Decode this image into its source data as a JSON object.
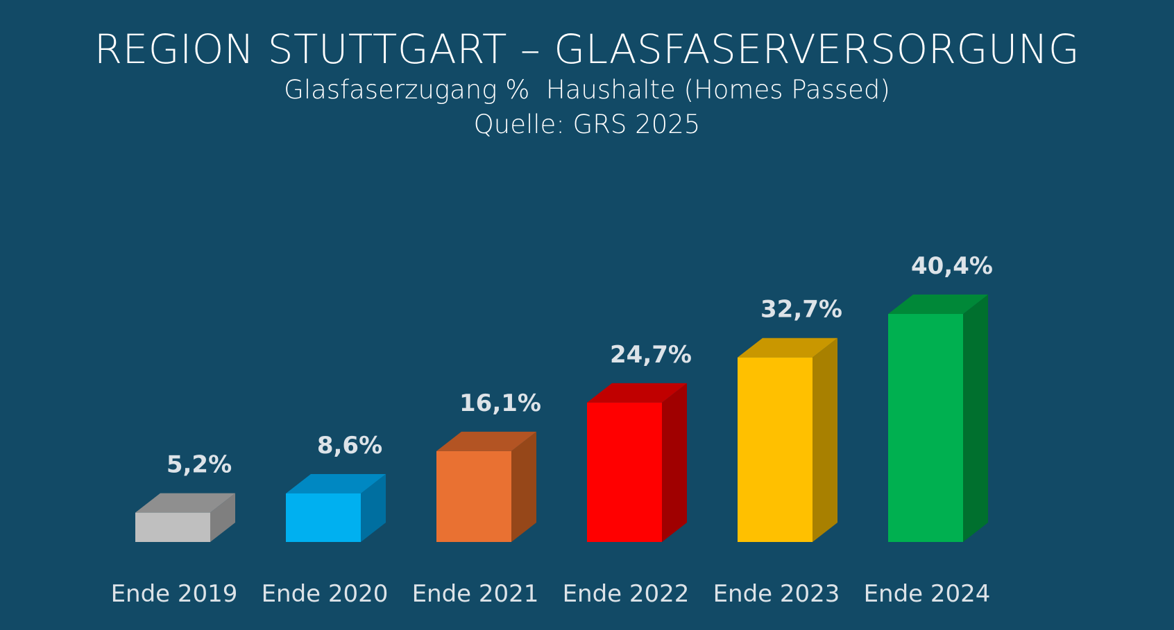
{
  "chart_data": {
    "type": "bar",
    "title": "REGION STUTTGART – GLASFASERVERSORGUNG",
    "subtitle": "Glasfaserzugang %  Haushalte (Homes Passed)",
    "source": "Quelle: GRS 2025",
    "categories": [
      "Ende 2019",
      "Ende 2020",
      "Ende 2021",
      "Ende 2022",
      "Ende 2023",
      "Ende 2024"
    ],
    "values": [
      5.2,
      8.6,
      16.1,
      24.7,
      32.7,
      40.4
    ],
    "value_labels": [
      "5,2%",
      "8,6%",
      "16,1%",
      "24,7%",
      "32,7%",
      "40,4%"
    ],
    "bar_colors": [
      {
        "front": "#bfbfbf",
        "top": "#8f8f8f",
        "side": "#7f7f7f"
      },
      {
        "front": "#00b0f0",
        "top": "#0088c2",
        "side": "#006fa0"
      },
      {
        "front": "#e97132",
        "top": "#b35423",
        "side": "#964719"
      },
      {
        "front": "#ff0000",
        "top": "#c00000",
        "side": "#a00000"
      },
      {
        "front": "#ffc000",
        "top": "#c99700",
        "side": "#a88000"
      },
      {
        "front": "#00b050",
        "top": "#008838",
        "side": "#00702e"
      }
    ],
    "background": "#124a66",
    "grid": false,
    "legend": "none",
    "ylim": [
      0,
      40.4
    ]
  }
}
